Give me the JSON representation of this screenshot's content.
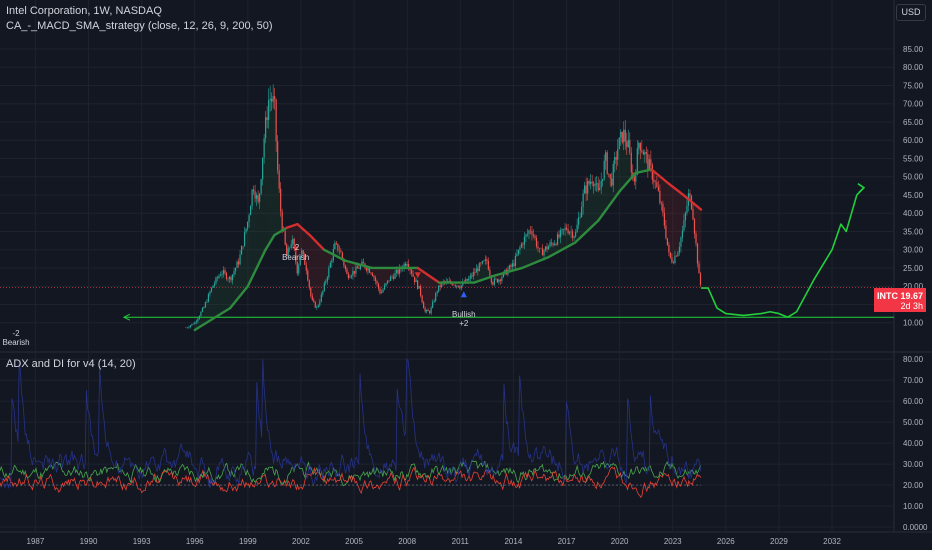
{
  "header": {
    "title": "Intel Corporation, 1W, NASDAQ",
    "strategy": "CA_-_MACD_SMA_strategy (close, 12, 26, 9, 200, 50)",
    "adx_title": "ADX and DI for v4 (14, 20)",
    "currency": "USD"
  },
  "price_tag": {
    "symbol": "INTC",
    "value": "19.67",
    "countdown": "2d 3h",
    "color": "#f23645"
  },
  "annotations": {
    "bearish_left_num": "-2",
    "bearish_left_text": "Bearish",
    "bearish_mid_num": "-2",
    "bearish_mid_text": "Bearish",
    "bullish_text": "Bullish",
    "bullish_num": "+2"
  },
  "colors": {
    "background": "#131722",
    "grid": "#1e222d",
    "sma_up": "#2e8b3e",
    "sma_down": "#d32f2f",
    "projection": "#22d03a",
    "candle_up": "#26a69a",
    "candle_down": "#ef5350",
    "plus_di": "#4caf50",
    "minus_di": "#f44336",
    "adx": "#283593"
  },
  "chart_data": [
    {
      "type": "candlestick",
      "title": "Intel Corporation, 1W, NASDAQ",
      "price_axis_labels": [
        "85.00",
        "80.00",
        "75.00",
        "70.00",
        "65.00",
        "60.00",
        "55.00",
        "50.00",
        "45.00",
        "40.00",
        "35.00",
        "30.00",
        "25.00",
        "20.00",
        "15.00",
        "10.00"
      ],
      "ylim": [
        8,
        88
      ],
      "x_axis_labels": [
        "1987",
        "1990",
        "1993",
        "1996",
        "1999",
        "2002",
        "2005",
        "2008",
        "2011",
        "2014",
        "2017",
        "2020",
        "2023",
        "2026",
        "2029",
        "2032"
      ],
      "xlim": [
        1985,
        2035.5
      ],
      "last_price": 19.67,
      "support_level": 11.5,
      "price_path": [
        [
          1995.5,
          8.6
        ],
        [
          1996.0,
          10
        ],
        [
          1996.5,
          14
        ],
        [
          1997.0,
          20
        ],
        [
          1997.5,
          24
        ],
        [
          1998.0,
          22
        ],
        [
          1998.5,
          27
        ],
        [
          1999.0,
          38
        ],
        [
          1999.3,
          48
        ],
        [
          1999.6,
          42
        ],
        [
          1999.9,
          60
        ],
        [
          2000.2,
          72
        ],
        [
          2000.5,
          70
        ],
        [
          2000.7,
          50
        ],
        [
          2000.9,
          38
        ],
        [
          2001.2,
          28
        ],
        [
          2001.5,
          33
        ],
        [
          2001.8,
          24
        ],
        [
          2002.0,
          30
        ],
        [
          2002.3,
          25
        ],
        [
          2002.6,
          16
        ],
        [
          2002.9,
          14
        ],
        [
          2003.2,
          18
        ],
        [
          2003.6,
          25
        ],
        [
          2003.9,
          31
        ],
        [
          2004.2,
          30
        ],
        [
          2004.6,
          23
        ],
        [
          2005.0,
          24
        ],
        [
          2005.5,
          26
        ],
        [
          2006.0,
          24
        ],
        [
          2006.5,
          18
        ],
        [
          2007.0,
          22
        ],
        [
          2007.5,
          24
        ],
        [
          2008.0,
          27
        ],
        [
          2008.4,
          22
        ],
        [
          2008.7,
          19
        ],
        [
          2009.0,
          13
        ],
        [
          2009.3,
          13
        ],
        [
          2009.7,
          19
        ],
        [
          2010.0,
          21
        ],
        [
          2010.5,
          21
        ],
        [
          2011.0,
          20
        ],
        [
          2011.5,
          22
        ],
        [
          2012.0,
          25
        ],
        [
          2012.5,
          27
        ],
        [
          2012.8,
          21
        ],
        [
          2013.2,
          22
        ],
        [
          2013.6,
          24
        ],
        [
          2014.0,
          26
        ],
        [
          2014.5,
          32
        ],
        [
          2015.0,
          36
        ],
        [
          2015.5,
          29
        ],
        [
          2016.0,
          31
        ],
        [
          2016.5,
          33
        ],
        [
          2017.0,
          36
        ],
        [
          2017.5,
          34
        ],
        [
          2018.0,
          46
        ],
        [
          2018.5,
          50
        ],
        [
          2018.8,
          45
        ],
        [
          2019.2,
          55
        ],
        [
          2019.5,
          48
        ],
        [
          2019.9,
          58
        ],
        [
          2020.2,
          62
        ],
        [
          2020.5,
          58
        ],
        [
          2020.8,
          48
        ],
        [
          2021.1,
          60
        ],
        [
          2021.5,
          55
        ],
        [
          2021.9,
          50
        ],
        [
          2022.2,
          45
        ],
        [
          2022.5,
          38
        ],
        [
          2022.8,
          28
        ],
        [
          2023.0,
          27
        ],
        [
          2023.3,
          30
        ],
        [
          2023.6,
          36
        ],
        [
          2023.9,
          45
        ],
        [
          2024.1,
          42
        ],
        [
          2024.3,
          32
        ],
        [
          2024.5,
          22
        ],
        [
          2024.6,
          19.67
        ]
      ],
      "sma_200": [
        [
          1996.0,
          8
        ],
        [
          1998.0,
          14
        ],
        [
          1999.0,
          20
        ],
        [
          2000.0,
          30
        ],
        [
          2000.5,
          34
        ],
        [
          2001.2,
          36
        ],
        [
          2001.8,
          37
        ],
        [
          2002.5,
          34
        ],
        [
          2003.3,
          30
        ],
        [
          2004.5,
          27
        ],
        [
          2006.0,
          25
        ],
        [
          2007.5,
          25
        ],
        [
          2008.6,
          25
        ],
        [
          2009.8,
          21
        ],
        [
          2010.8,
          21
        ],
        [
          2011.8,
          21
        ],
        [
          2013.0,
          23
        ],
        [
          2014.5,
          25
        ],
        [
          2016.0,
          28
        ],
        [
          2017.5,
          32
        ],
        [
          2018.8,
          38
        ],
        [
          2020.0,
          46
        ],
        [
          2020.9,
          51
        ],
        [
          2021.8,
          52
        ],
        [
          2022.8,
          48
        ],
        [
          2023.6,
          45
        ],
        [
          2024.6,
          41
        ]
      ],
      "sma_200_down_segments": [
        [
          2001.0,
          2003.3
        ],
        [
          2008.5,
          2009.9
        ],
        [
          2021.4,
          2024.6
        ]
      ],
      "projection": [
        [
          2024.6,
          19.5
        ],
        [
          2025.0,
          19.5
        ],
        [
          2025.5,
          14
        ],
        [
          2026.0,
          12.5
        ],
        [
          2027.0,
          12
        ],
        [
          2028.0,
          12.5
        ],
        [
          2028.5,
          13
        ],
        [
          2029.0,
          12.5
        ],
        [
          2029.5,
          11.5
        ],
        [
          2030.0,
          13
        ],
        [
          2031.0,
          22
        ],
        [
          2032.0,
          30
        ],
        [
          2032.5,
          37
        ],
        [
          2032.8,
          35
        ],
        [
          2033.1,
          40
        ],
        [
          2033.4,
          45
        ],
        [
          2033.8,
          47
        ]
      ],
      "signal_markers": [
        {
          "x": 2001.7,
          "direction": "down"
        },
        {
          "x": 2008.6,
          "direction": "down"
        },
        {
          "x": 2011.2,
          "direction": "up"
        }
      ]
    },
    {
      "type": "line",
      "title": "ADX and DI for v4 (14, 20)",
      "axis_labels": [
        "80.00",
        "70.00",
        "60.00",
        "50.00",
        "40.00",
        "30.00",
        "20.00",
        "10.00",
        "0.0000"
      ],
      "ylim": [
        0,
        82
      ],
      "xlim": [
        1985,
        2035.5
      ],
      "x_end": 2024.6,
      "series": [
        {
          "name": "+DI",
          "color": "#4caf50",
          "baseline": 26,
          "amplitude": 12
        },
        {
          "name": "-DI",
          "color": "#f44336",
          "baseline": 22,
          "amplitude": 12
        },
        {
          "name": "ADX",
          "color": "#283593",
          "baseline": 28,
          "amplitude": 22
        }
      ],
      "reference_level": 20
    }
  ]
}
